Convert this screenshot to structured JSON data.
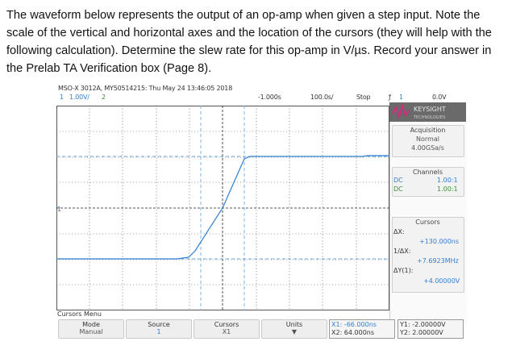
{
  "prompt": {
    "text": "The waveform below represents the output of an op-amp when given a step input. Note the scale of the vertical and horizontal axes and the location of the cursors (they will help with the following calculation). Determine the slew rate for this op-amp in V/µs. Record your answer in the Prelab TA Verification box (Page 8)."
  },
  "scope": {
    "header": {
      "model_line": "MSO-X 3012A, MY50514215: Thu May 24 13:46:05 2018",
      "ch1_num": "1",
      "ch1_scale": "1.00V/",
      "ch2_num": "2",
      "time_offset": "-1.000s",
      "time_scale": "100.0s/",
      "run_state": "Stop",
      "trigger_icon": "trigger-edge",
      "trig_ch": "1",
      "trig_level": "0.0V"
    },
    "logo_text": "KEYSIGHT",
    "logo_sub": "TECHNOLOGIES",
    "acquisition": {
      "title": "Acquisition",
      "mode": "Normal",
      "rate": "4.00GSa/s"
    },
    "channels": {
      "title": "Channels",
      "ch1_coupling": "DC",
      "ch1_probe": "1.00:1",
      "ch2_coupling": "DC",
      "ch2_probe": "1.00:1"
    },
    "cursors_panel": {
      "title": "Cursors",
      "dx_label": "ΔX:",
      "dx_value": "+130.000ns",
      "inv_dx_label": "1/ΔX:",
      "inv_dx_value": "+7.6923MHz",
      "dy_label": "ΔY(1):",
      "dy_value": "+4.00000V"
    },
    "ground_marker": "1",
    "menu": {
      "title": "Cursors Menu",
      "mode_label": "Mode",
      "mode_value": "Manual",
      "source_label": "Source",
      "source_value": "1",
      "cursors_label": "Cursors",
      "cursors_value": "X1",
      "units_label": "Units",
      "x1": "X1: -66.000ns",
      "x2": "X2: 64.000ns",
      "y1": "Y1: -2.00000V",
      "y2": "Y2: 2.00000V"
    },
    "colors": {
      "trace": "#2f7fd0",
      "cursor_y": "#6fa8dc",
      "grid": "#000000",
      "accent_logo": "#8b3a9b"
    }
  }
}
